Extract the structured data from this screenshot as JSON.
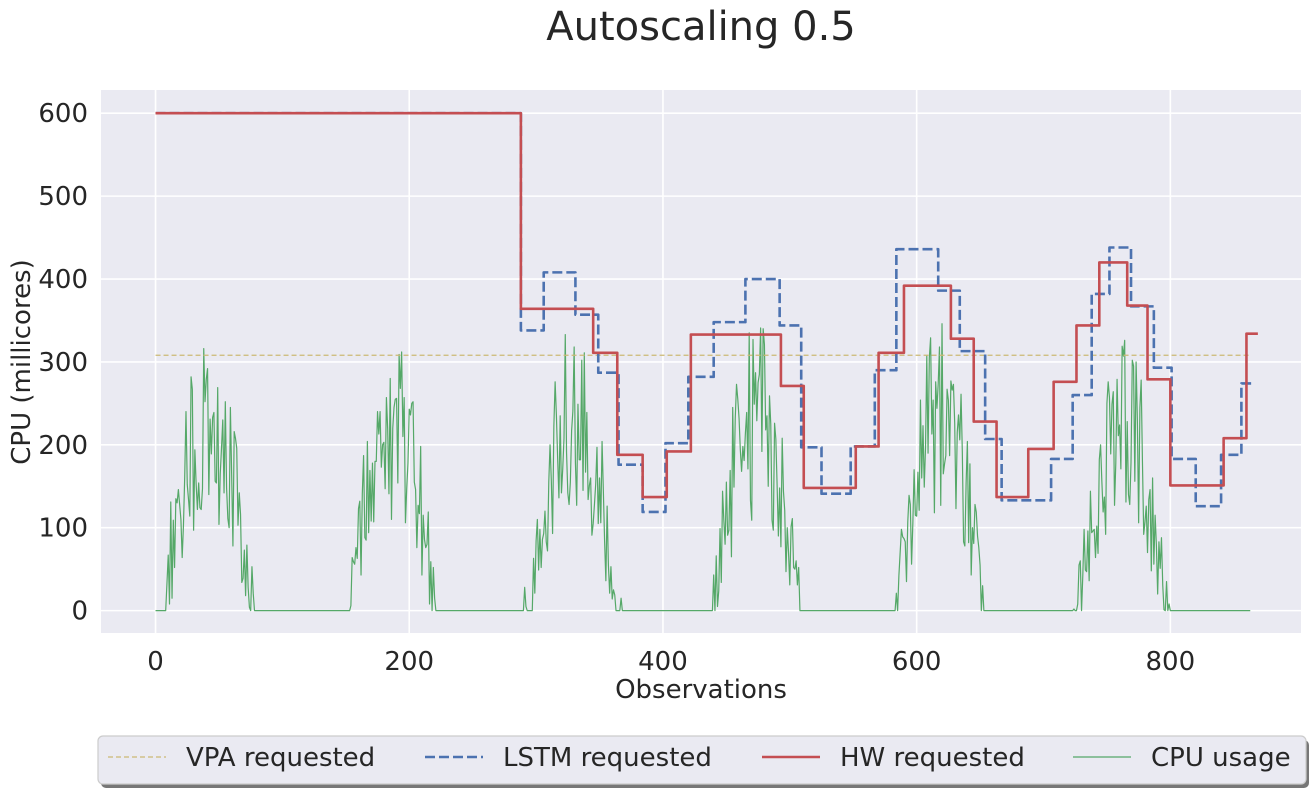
{
  "chart_data": {
    "type": "line",
    "title": "Autoscaling 0.5",
    "xlabel": "Observations",
    "ylabel": "CPU (millicores)",
    "xlim": [
      -43,
      903
    ],
    "ylim": [
      -27,
      628
    ],
    "xticks": [
      0,
      200,
      400,
      600,
      800
    ],
    "yticks": [
      0,
      100,
      200,
      300,
      400,
      500,
      600
    ],
    "grid": true,
    "legend_position": "bottom",
    "colors": {
      "background": "#eaeaf2",
      "grid": "#ffffff",
      "vpa": "#ccb974",
      "lstm": "#4c72b0",
      "hw": "#c44e52",
      "cpu": "#55a868"
    },
    "series": [
      {
        "name": "VPA requested",
        "style": "dashed-thin",
        "points": [
          [
            0,
            308
          ],
          [
            864,
            308
          ]
        ]
      },
      {
        "name": "LSTM requested",
        "style": "dashed",
        "steps": [
          [
            0,
            600
          ],
          [
            288,
            338
          ],
          [
            306,
            408
          ],
          [
            331,
            357
          ],
          [
            349,
            287
          ],
          [
            365,
            176
          ],
          [
            384,
            119
          ],
          [
            402,
            202
          ],
          [
            420,
            282
          ],
          [
            440,
            348
          ],
          [
            465,
            400
          ],
          [
            492,
            344
          ],
          [
            509,
            197
          ],
          [
            525,
            141
          ],
          [
            548,
            198
          ],
          [
            567,
            290
          ],
          [
            584,
            436
          ],
          [
            617,
            386
          ],
          [
            634,
            313
          ],
          [
            654,
            207
          ],
          [
            667,
            133
          ],
          [
            688,
            133
          ],
          [
            706,
            183
          ],
          [
            723,
            260
          ],
          [
            738,
            382
          ],
          [
            752,
            438
          ],
          [
            769,
            367
          ],
          [
            787,
            293
          ],
          [
            801,
            183
          ],
          [
            820,
            126
          ],
          [
            840,
            188
          ],
          [
            856,
            274
          ]
        ],
        "x_end": 864
      },
      {
        "name": "HW requested",
        "style": "solid",
        "steps": [
          [
            0,
            600
          ],
          [
            288,
            364
          ],
          [
            345,
            311
          ],
          [
            364,
            188
          ],
          [
            384,
            137
          ],
          [
            403,
            192
          ],
          [
            422,
            333
          ],
          [
            493,
            271
          ],
          [
            511,
            148
          ],
          [
            552,
            198
          ],
          [
            570,
            311
          ],
          [
            590,
            392
          ],
          [
            627,
            328
          ],
          [
            645,
            228
          ],
          [
            663,
            137
          ],
          [
            688,
            195
          ],
          [
            708,
            276
          ],
          [
            726,
            344
          ],
          [
            744,
            420
          ],
          [
            766,
            368
          ],
          [
            782,
            279
          ],
          [
            800,
            151
          ],
          [
            842,
            208
          ],
          [
            860,
            334
          ]
        ],
        "x_end": 869
      },
      {
        "name": "CPU usage",
        "style": "solid-thin",
        "generated": "daily-sine-cycle",
        "period": 144,
        "peak": 230,
        "n_points": 864
      }
    ]
  }
}
